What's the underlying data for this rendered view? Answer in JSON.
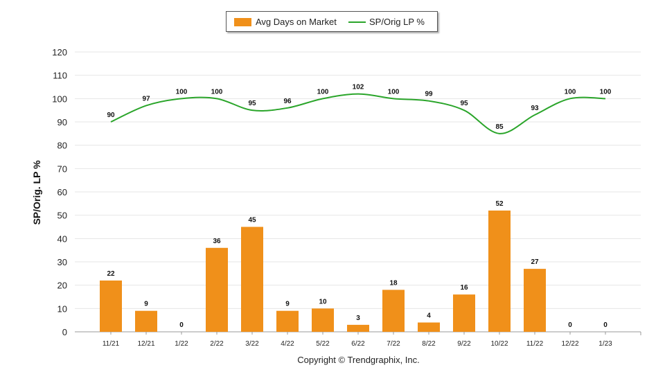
{
  "legend": {
    "bar_label": "Avg Days on Market",
    "line_label": "SP/Orig LP %"
  },
  "copyright": "Copyright © Trendgraphix, Inc.",
  "chart_data": {
    "type": "bar",
    "categories": [
      "11/21",
      "12/21",
      "1/22",
      "2/22",
      "3/22",
      "4/22",
      "5/22",
      "6/22",
      "7/22",
      "8/22",
      "9/22",
      "10/22",
      "11/22",
      "12/22",
      "1/23"
    ],
    "series": [
      {
        "name": "Avg Days on Market",
        "type": "bar",
        "color": "#f0901a",
        "values": [
          22,
          9,
          0,
          36,
          45,
          9,
          10,
          3,
          18,
          4,
          16,
          52,
          27,
          0,
          0
        ]
      },
      {
        "name": "SP/Orig LP %",
        "type": "line",
        "color": "#2aa52a",
        "values": [
          90,
          97,
          100,
          100,
          95,
          96,
          100,
          102,
          100,
          99,
          95,
          85,
          93,
          100,
          100
        ]
      }
    ],
    "ylabel": "SP/Orig. LP %",
    "ylim": [
      0,
      120
    ],
    "yticks": [
      0,
      10,
      20,
      30,
      40,
      50,
      60,
      70,
      80,
      90,
      100,
      110,
      120
    ],
    "grid": true,
    "legend_position": "top"
  }
}
